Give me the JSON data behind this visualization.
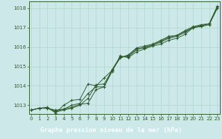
{
  "background_color": "#cce8e8",
  "plot_bg_color": "#cce8e8",
  "grid_color": "#b0d4cc",
  "line_color": "#2d5a2d",
  "bottom_bar_color": "#2d5a2d",
  "xlabel": "Graphe pression niveau de la mer (hPa)",
  "xlabel_fontsize": 6.5,
  "ylim": [
    1012.55,
    1018.35
  ],
  "xlim": [
    -0.3,
    23.3
  ],
  "yticks": [
    1013,
    1014,
    1015,
    1016,
    1017,
    1018
  ],
  "xticks": [
    0,
    1,
    2,
    3,
    4,
    5,
    6,
    7,
    8,
    9,
    10,
    11,
    12,
    13,
    14,
    15,
    16,
    17,
    18,
    19,
    20,
    21,
    22,
    23
  ],
  "series": [
    [
      1012.75,
      1012.85,
      1012.85,
      1012.75,
      1012.8,
      1012.9,
      1013.05,
      1013.1,
      1013.8,
      1013.95,
      1014.75,
      1015.55,
      1015.45,
      1015.75,
      1015.9,
      1016.05,
      1016.15,
      1016.35,
      1016.45,
      1016.65,
      1017.0,
      1017.05,
      1017.15,
      1018.0
    ],
    [
      1012.75,
      1012.85,
      1012.85,
      1012.65,
      1012.75,
      1012.85,
      1013.0,
      1013.35,
      1014.05,
      1014.1,
      1014.8,
      1015.45,
      1015.55,
      1015.9,
      1015.95,
      1016.1,
      1016.25,
      1016.45,
      1016.55,
      1016.75,
      1017.0,
      1017.1,
      1017.2,
      1018.05
    ],
    [
      1012.75,
      1012.85,
      1012.85,
      1012.7,
      1012.8,
      1013.0,
      1013.1,
      1013.6,
      1013.95,
      1013.95,
      1014.85,
      1015.5,
      1015.5,
      1015.85,
      1016.0,
      1016.1,
      1016.3,
      1016.5,
      1016.6,
      1016.8,
      1017.0,
      1017.1,
      1017.2,
      1018.1
    ],
    [
      1012.75,
      1012.85,
      1012.9,
      1012.6,
      1013.0,
      1013.25,
      1013.3,
      1014.1,
      1014.0,
      1014.4,
      1014.8,
      1015.45,
      1015.6,
      1015.95,
      1016.05,
      1016.15,
      1016.35,
      1016.55,
      1016.6,
      1016.85,
      1017.05,
      1017.15,
      1017.2,
      1018.1
    ]
  ],
  "marker": "+",
  "markersize": 3.5,
  "linewidth": 0.7,
  "tick_fontsize": 5.2,
  "tick_color": "#2d5a2d",
  "spine_color": "#2d5a2d"
}
